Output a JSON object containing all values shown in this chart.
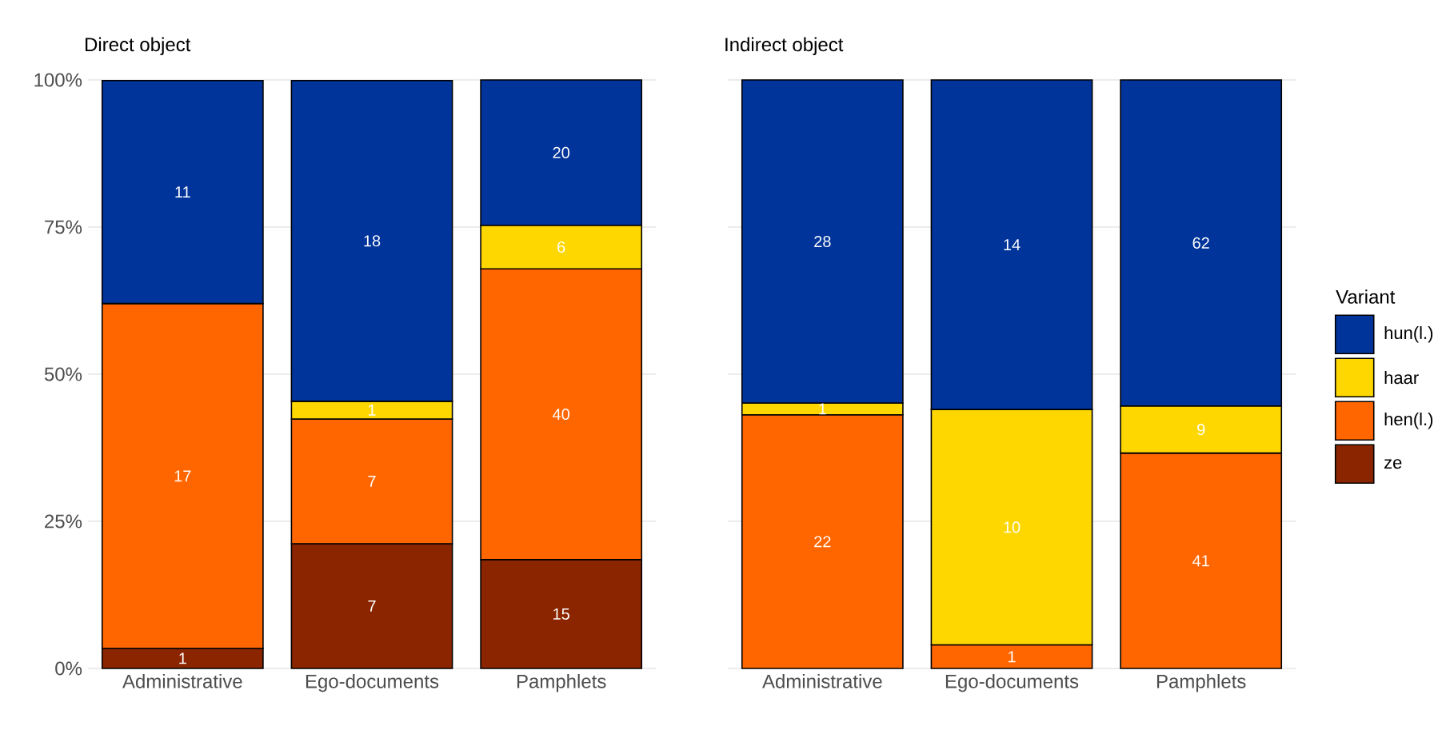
{
  "chart_data": [
    {
      "type": "bar",
      "stacked": true,
      "title": "Direct object",
      "categories": [
        "Administrative",
        "Ego-documents",
        "Pamphlets"
      ],
      "series": [
        {
          "color": "#8b2500",
          "values": [
            3.4,
            21.2,
            18.5
          ]
        },
        {
          "color": "#ff6600",
          "values": [
            58.6,
            21.2,
            49.4
          ]
        },
        {
          "color": "#ffd700",
          "values": [
            0,
            3.0,
            7.4
          ]
        },
        {
          "color": "#00349a",
          "values": [
            37.9,
            54.5,
            24.7
          ]
        }
      ],
      "annotations": [
        "1",
        "17",
        "11",
        "7",
        "7",
        "1",
        "18",
        "15",
        "40",
        "6",
        "20"
      ],
      "ylim": [
        0,
        100
      ],
      "yticks": [
        {
          "value": 0,
          "label": "0%"
        },
        {
          "value": 25,
          "label": "25%"
        },
        {
          "value": 50,
          "label": "50%"
        },
        {
          "value": 75,
          "label": "75%"
        },
        {
          "value": 100,
          "label": "100%"
        }
      ],
      "grid": true
    },
    {
      "type": "bar",
      "stacked": true,
      "title": "Indirect object",
      "legend": "right",
      "legend_title": "Variant",
      "categories": [
        "Administrative",
        "Ego-documents",
        "Pamphlets"
      ],
      "series": [
        {
          "name": "ze",
          "color": "#8b2500",
          "values": [
            0,
            0,
            0
          ]
        },
        {
          "name": "hen(l.)",
          "color": "#ff6600",
          "values": [
            43.1,
            4.0,
            36.6
          ]
        },
        {
          "name": "haar",
          "color": "#ffd700",
          "values": [
            2.0,
            40.0,
            8.0
          ]
        },
        {
          "name": "hun(l.)",
          "color": "#00349a",
          "values": [
            54.9,
            56.0,
            55.4
          ]
        }
      ],
      "annotations": [
        "22",
        "1",
        "28",
        "1",
        "10",
        "14",
        "41",
        "9",
        "62"
      ],
      "ylim": [
        0,
        100
      ],
      "yticks": [
        0,
        25,
        50,
        75,
        100
      ],
      "grid": true,
      "tick_labels": "x"
    }
  ]
}
